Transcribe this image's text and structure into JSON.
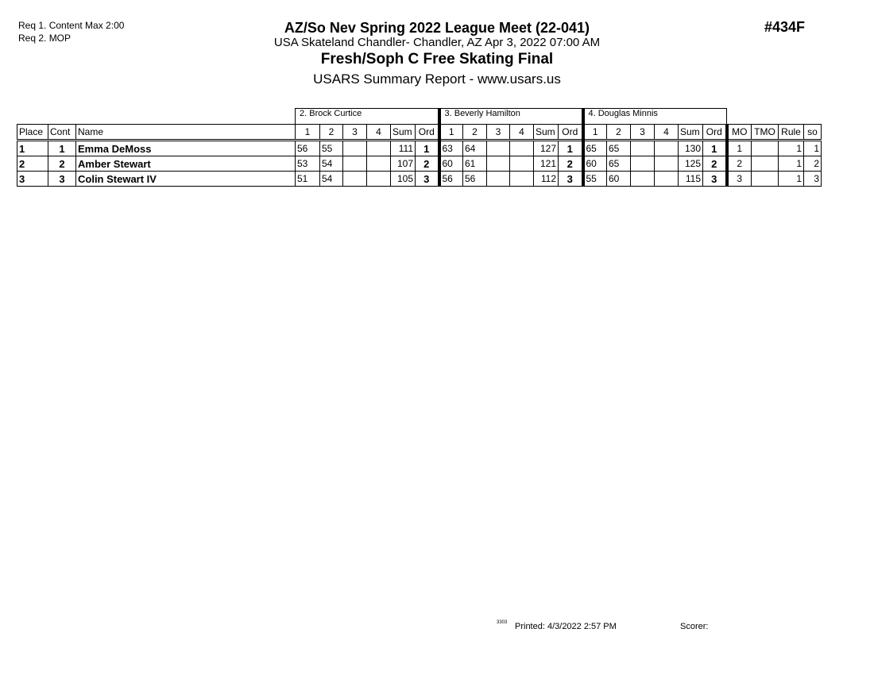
{
  "requirements": [
    "Req  1.  Content Max 2:00",
    "Req  2.  MOP"
  ],
  "header": {
    "title": "AZ/So Nev Spring 2022 League Meet (22-041)",
    "location": "USA Skateland Chandler- Chandler, AZ  Apr 3, 2022  07:00 AM",
    "event": "Fresh/Soph C Free Skating Final",
    "report": "USARS Summary Report - www.usars.us",
    "event_number": "#434F"
  },
  "judges": [
    "2.  Brock Curtice",
    "3.  Beverly Hamilton",
    "4.  Douglas Minnis"
  ],
  "columns": {
    "place": "Place",
    "cont": "Cont",
    "name": "Name",
    "judge_cols": [
      "1",
      "2",
      "3",
      "4",
      "Sum",
      "Ord"
    ],
    "mo": "MO",
    "tmo": "TMO",
    "rule": "Rule",
    "so": "so"
  },
  "rows": [
    {
      "place": "1",
      "cont": "1",
      "name": "Emma DeMoss",
      "scores": [
        [
          "56",
          "55",
          "",
          "",
          "111",
          "1"
        ],
        [
          "63",
          "64",
          "",
          "",
          "127",
          "1"
        ],
        [
          "65",
          "65",
          "",
          "",
          "130",
          "1"
        ]
      ],
      "mo": "1",
      "tmo": "",
      "rule": "1",
      "so": "1"
    },
    {
      "place": "2",
      "cont": "2",
      "name": "Amber Stewart",
      "scores": [
        [
          "53",
          "54",
          "",
          "",
          "107",
          "2"
        ],
        [
          "60",
          "61",
          "",
          "",
          "121",
          "2"
        ],
        [
          "60",
          "65",
          "",
          "",
          "125",
          "2"
        ]
      ],
      "mo": "2",
      "tmo": "",
      "rule": "1",
      "so": "2"
    },
    {
      "place": "3",
      "cont": "3",
      "name": "Colin Stewart IV",
      "scores": [
        [
          "51",
          "54",
          "",
          "",
          "105",
          "3"
        ],
        [
          "56",
          "56",
          "",
          "",
          "112",
          "3"
        ],
        [
          "55",
          "60",
          "",
          "",
          "115",
          "3"
        ]
      ],
      "mo": "3",
      "tmo": "",
      "rule": "1",
      "so": "3"
    }
  ],
  "footer": {
    "code": "3303",
    "printed": "Printed:  4/3/2022  2:57 PM",
    "scorer": "Scorer:"
  }
}
